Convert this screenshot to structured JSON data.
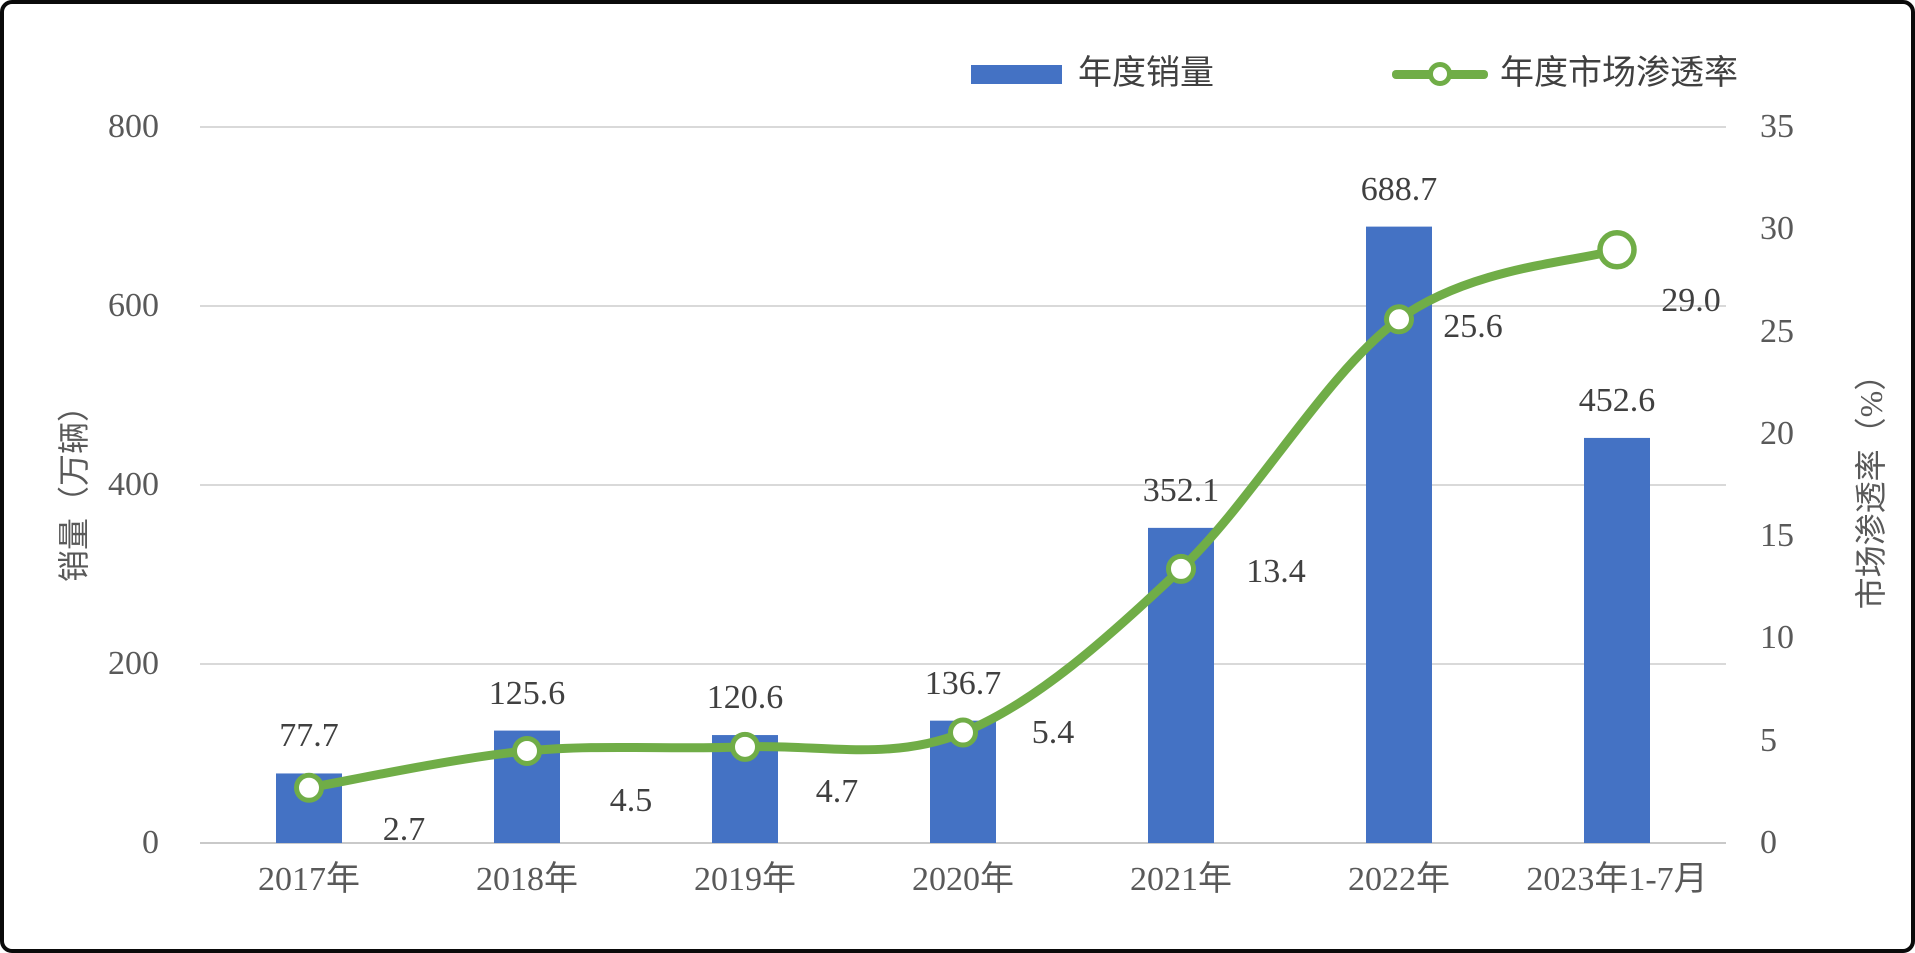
{
  "chart_data": {
    "type": "combo-bar-line",
    "title": "",
    "categories": [
      "2017年",
      "2018年",
      "2019年",
      "2020年",
      "2021年",
      "2022年",
      "2023年1-7月"
    ],
    "series": [
      {
        "name": "年度销量",
        "type": "bar",
        "axis": "left",
        "color": "#4472C4",
        "values": [
          77.7,
          125.6,
          120.6,
          136.7,
          352.1,
          688.7,
          452.6
        ],
        "data_labels": [
          "77.7",
          "125.6",
          "120.6",
          "136.7",
          "352.1",
          "688.7",
          "452.6"
        ]
      },
      {
        "name": "年度市场渗透率",
        "type": "line",
        "axis": "right",
        "color": "#70AD47",
        "marker": "open-circle",
        "values": [
          2.7,
          4.5,
          4.7,
          5.4,
          13.4,
          25.6,
          29.0
        ],
        "data_labels": [
          "2.7",
          "4.5",
          "4.7",
          "5.4",
          "13.4",
          "25.6",
          "29.0"
        ]
      }
    ],
    "axes": {
      "left": {
        "title": "销量（万辆）",
        "min": 0,
        "max": 800,
        "tick_labels": [
          "0",
          "200",
          "400",
          "600",
          "800"
        ]
      },
      "right": {
        "title": "市场渗透率（%）",
        "min": 0,
        "max": 35,
        "tick_labels": [
          "0",
          "5",
          "10",
          "15",
          "20",
          "25",
          "30",
          "35"
        ]
      }
    },
    "legend": {
      "position": "top",
      "items": [
        "年度销量",
        "年度市场渗透率"
      ]
    },
    "grid": true
  },
  "colors": {
    "bar_blue": "#4472C4",
    "line_green": "#70AD47",
    "gridline": "#D9D9D9",
    "axis_line": "#C9C9C9",
    "tick_text": "#595959",
    "label_text": "#404040",
    "background": "#FFFFFF",
    "border": "#0A0A0A"
  }
}
